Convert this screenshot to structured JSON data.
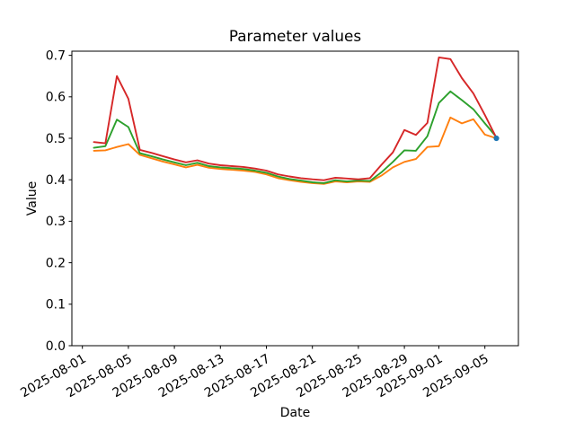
{
  "chart_data": {
    "type": "line",
    "title": "Parameter values",
    "xlabel": "Date",
    "ylabel": "Value",
    "ylim": [
      0,
      0.71
    ],
    "grid": false,
    "legend": "none",
    "dates": [
      "2025-08-02",
      "2025-08-03",
      "2025-08-04",
      "2025-08-05",
      "2025-08-06",
      "2025-08-07",
      "2025-08-08",
      "2025-08-09",
      "2025-08-10",
      "2025-08-11",
      "2025-08-12",
      "2025-08-13",
      "2025-08-14",
      "2025-08-15",
      "2025-08-16",
      "2025-08-17",
      "2025-08-18",
      "2025-08-19",
      "2025-08-20",
      "2025-08-21",
      "2025-08-22",
      "2025-08-23",
      "2025-08-24",
      "2025-08-25",
      "2025-08-26",
      "2025-08-27",
      "2025-08-28",
      "2025-08-29",
      "2025-08-30",
      "2025-08-31",
      "2025-09-01",
      "2025-09-02",
      "2025-09-03",
      "2025-09-04",
      "2025-09-05",
      "2025-09-06"
    ],
    "x_ticks": [
      {
        "label": "2025-08-01",
        "day": -1
      },
      {
        "label": "2025-08-05",
        "day": 3
      },
      {
        "label": "2025-08-09",
        "day": 7
      },
      {
        "label": "2025-08-13",
        "day": 11
      },
      {
        "label": "2025-08-17",
        "day": 15
      },
      {
        "label": "2025-08-21",
        "day": 19
      },
      {
        "label": "2025-08-25",
        "day": 23
      },
      {
        "label": "2025-08-29",
        "day": 27
      },
      {
        "label": "2025-09-01",
        "day": 30
      },
      {
        "label": "2025-09-05",
        "day": 34
      }
    ],
    "y_ticks": [
      {
        "label": "0.0",
        "value": 0.0
      },
      {
        "label": "0.1",
        "value": 0.1
      },
      {
        "label": "0.2",
        "value": 0.2
      },
      {
        "label": "0.3",
        "value": 0.3
      },
      {
        "label": "0.4",
        "value": 0.4
      },
      {
        "label": "0.5",
        "value": 0.5
      },
      {
        "label": "0.6",
        "value": 0.6
      },
      {
        "label": "0.7",
        "value": 0.7
      }
    ],
    "series": [
      {
        "name": "series-red",
        "color": "#d62728",
        "values": [
          0.491,
          0.488,
          0.65,
          0.595,
          0.472,
          0.465,
          0.457,
          0.449,
          0.442,
          0.447,
          0.439,
          0.435,
          0.433,
          0.431,
          0.427,
          0.422,
          0.413,
          0.408,
          0.404,
          0.401,
          0.399,
          0.405,
          0.403,
          0.401,
          0.404,
          0.436,
          0.466,
          0.52,
          0.508,
          0.537,
          0.695,
          0.691,
          0.645,
          0.608,
          0.556,
          0.501
        ]
      },
      {
        "name": "series-green",
        "color": "#2ca02c",
        "values": [
          0.477,
          0.481,
          0.545,
          0.527,
          0.464,
          0.457,
          0.449,
          0.442,
          0.435,
          0.441,
          0.433,
          0.43,
          0.428,
          0.426,
          0.422,
          0.417,
          0.408,
          0.402,
          0.398,
          0.394,
          0.392,
          0.399,
          0.396,
          0.398,
          0.397,
          0.418,
          0.443,
          0.471,
          0.47,
          0.505,
          0.585,
          0.613,
          0.592,
          0.57,
          0.536,
          0.503
        ]
      },
      {
        "name": "series-orange",
        "color": "#ff7f0e",
        "values": [
          0.47,
          0.471,
          0.479,
          0.486,
          0.46,
          0.452,
          0.444,
          0.437,
          0.43,
          0.436,
          0.429,
          0.426,
          0.424,
          0.422,
          0.419,
          0.413,
          0.404,
          0.399,
          0.395,
          0.392,
          0.39,
          0.396,
          0.394,
          0.396,
          0.395,
          0.41,
          0.43,
          0.443,
          0.45,
          0.479,
          0.481,
          0.55,
          0.536,
          0.546,
          0.509,
          0.5
        ]
      }
    ],
    "end_marker": {
      "color": "#1f77b4",
      "date": "2025-09-06",
      "value": 0.5
    }
  }
}
